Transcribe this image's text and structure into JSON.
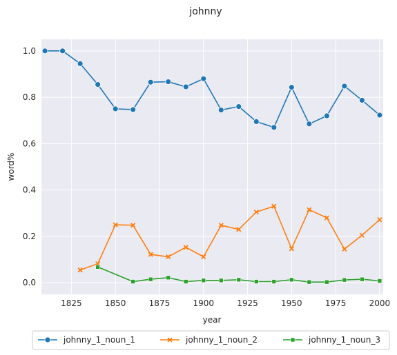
{
  "chart_data": {
    "type": "line",
    "title": "johnny",
    "xlabel": "year",
    "ylabel": "word%",
    "xlim": [
      1808,
      2002
    ],
    "ylim": [
      -0.05,
      1.05
    ],
    "x_ticks": [
      1825,
      1850,
      1875,
      1900,
      1925,
      1950,
      1975,
      2000
    ],
    "y_ticks": [
      0.0,
      0.2,
      0.4,
      0.6,
      0.8,
      1.0
    ],
    "grid": true,
    "legend_position": "bottom",
    "series": [
      {
        "name": "johnny_1_noun_1",
        "color": "#1f77b4",
        "marker": "circle",
        "x": [
          1810,
          1820,
          1830,
          1840,
          1850,
          1860,
          1870,
          1880,
          1890,
          1900,
          1910,
          1920,
          1930,
          1940,
          1950,
          1960,
          1970,
          1980,
          1990,
          2000
        ],
        "y": [
          1.0,
          1.0,
          0.945,
          0.855,
          0.75,
          0.747,
          0.865,
          0.867,
          0.845,
          0.88,
          0.745,
          0.76,
          0.695,
          0.67,
          0.843,
          0.685,
          0.72,
          0.848,
          0.787,
          0.723
        ]
      },
      {
        "name": "johnny_1_noun_2",
        "color": "#ff7f0e",
        "marker": "x",
        "x": [
          1830,
          1840,
          1850,
          1860,
          1870,
          1880,
          1890,
          1900,
          1910,
          1920,
          1930,
          1940,
          1950,
          1960,
          1970,
          1980,
          1990,
          2000
        ],
        "y": [
          0.055,
          0.082,
          0.25,
          0.248,
          0.122,
          0.112,
          0.153,
          0.112,
          0.248,
          0.23,
          0.305,
          0.33,
          0.147,
          0.315,
          0.28,
          0.145,
          0.205,
          0.272
        ]
      },
      {
        "name": "johnny_1_noun_3",
        "color": "#2ca02c",
        "marker": "square",
        "x": [
          1840,
          1860,
          1870,
          1880,
          1890,
          1900,
          1910,
          1920,
          1930,
          1940,
          1950,
          1960,
          1970,
          1980,
          1990,
          2000
        ],
        "y": [
          0.068,
          0.005,
          0.015,
          0.022,
          0.005,
          0.01,
          0.01,
          0.013,
          0.005,
          0.005,
          0.013,
          0.003,
          0.003,
          0.012,
          0.015,
          0.008
        ]
      }
    ]
  }
}
